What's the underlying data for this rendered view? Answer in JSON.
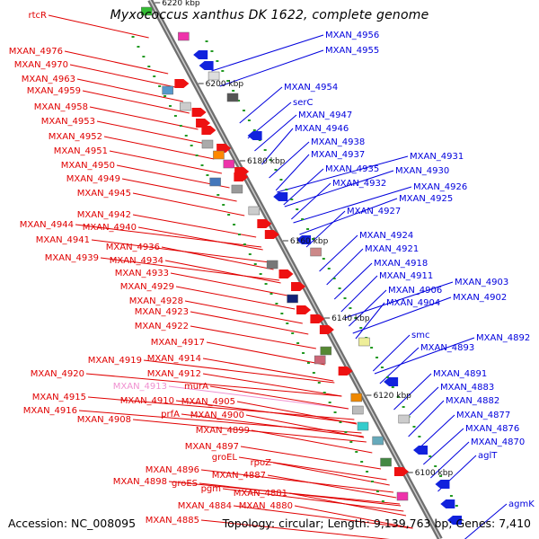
{
  "title": "Myxococcus xanthus DK 1622, complete genome",
  "footer": {
    "accession": "Accession: NC_008095",
    "stats": "Topology: circular; Length: 9,139,763 bp; Genes: 7,410"
  },
  "colors": {
    "left_label": "#e00000",
    "right_label": "#0000dd",
    "pink_label": "#f090d0",
    "backbone": "#777777",
    "tick": "#229922"
  },
  "scale": [
    "6220 kbp",
    "6200 kbp",
    "6180 kbp",
    "6160 kbp",
    "6140 kbp",
    "6120 kbp",
    "6100 kbp"
  ],
  "left_labels": [
    "rtcR",
    "MXAN_4976",
    "MXAN_4970",
    "MXAN_4963",
    "MXAN_4959",
    "MXAN_4958",
    "MXAN_4953",
    "MXAN_4952",
    "MXAN_4951",
    "MXAN_4950",
    "MXAN_4949",
    "MXAN_4945",
    "MXAN_4942",
    "MXAN_4944",
    "MXAN_4940",
    "MXAN_4941",
    "MXAN_4936",
    "MXAN_4939",
    "MXAN_4934",
    "MXAN_4933",
    "MXAN_4929",
    "MXAN_4928",
    "MXAN_4923",
    "MXAN_4922",
    "MXAN_4917",
    "MXAN_4919",
    "MXAN_4914",
    "MXAN_4920",
    "MXAN_4912",
    "MXAN_4913",
    "murA",
    "MXAN_4915",
    "MXAN_4910",
    "MXAN_4916",
    "prfA",
    "MXAN_4905",
    "MXAN_4908",
    "MXAN_4900",
    "MXAN_4899",
    "MXAN_4897",
    "groEL",
    "rpoZ",
    "MXAN_4896",
    "MXAN_4887",
    "MXAN_4898",
    "groES",
    "pgm",
    "MXAN_4881",
    "MXAN_4884",
    "MXAN_4880",
    "MXAN_4885"
  ],
  "right_labels": [
    "MXAN_4956",
    "MXAN_4955",
    "MXAN_4954",
    "serC",
    "MXAN_4947",
    "MXAN_4946",
    "MXAN_4938",
    "MXAN_4937",
    "MXAN_4931",
    "MXAN_4935",
    "MXAN_4930",
    "MXAN_4932",
    "MXAN_4926",
    "MXAN_4925",
    "MXAN_4927",
    "MXAN_4924",
    "MXAN_4921",
    "MXAN_4918",
    "MXAN_4911",
    "MXAN_4906",
    "MXAN_4903",
    "MXAN_4904",
    "MXAN_4902",
    "smc",
    "MXAN_4892",
    "MXAN_4893",
    "MXAN_4891",
    "MXAN_4883",
    "MXAN_4882",
    "MXAN_4877",
    "MXAN_4876",
    "MXAN_4870",
    "aglT",
    "agmK"
  ]
}
